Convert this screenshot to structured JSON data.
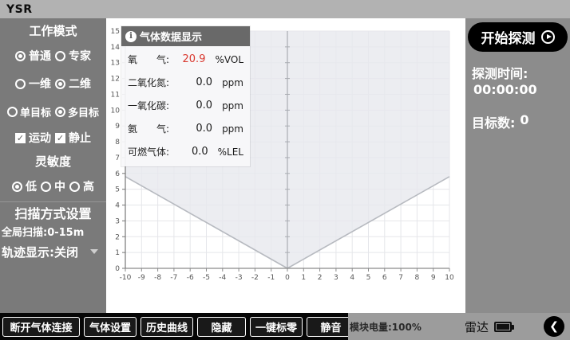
{
  "topbar": {
    "title": "YSR"
  },
  "sidebar": {
    "work_mode_heading": "工作模式",
    "mode_options": [
      {
        "label": "普通",
        "selected": true
      },
      {
        "label": "专家",
        "selected": false
      }
    ],
    "dimension_options": [
      {
        "label": "一维",
        "selected": false
      },
      {
        "label": "二维",
        "selected": true
      }
    ],
    "target_options": [
      {
        "label": "单目标",
        "selected": false
      },
      {
        "label": "多目标",
        "selected": true
      }
    ],
    "motion_checkboxes": [
      {
        "label": "运动",
        "checked": true,
        "check_glyph": "✓"
      },
      {
        "label": "静止",
        "checked": true,
        "check_glyph": "✓"
      }
    ],
    "sensitivity_heading": "灵敏度",
    "sensitivity_options": [
      {
        "label": "低",
        "selected": true
      },
      {
        "label": "中",
        "selected": false
      },
      {
        "label": "高",
        "selected": false
      }
    ],
    "scan_heading": "扫描方式设置",
    "global_scan_label": "全局扫描:0-15m",
    "trace_display_label": "轨迹显示:关闭"
  },
  "gas_panel": {
    "title": "气体数据显示",
    "info_icon_glyph": "i",
    "rows": [
      {
        "label": "氧　　气:",
        "value": "20.9",
        "unit": "%VOL"
      },
      {
        "label": "二氧化氮:",
        "value": "0.0",
        "unit": "ppm"
      },
      {
        "label": "一氧化碳:",
        "value": "0.0",
        "unit": "ppm"
      },
      {
        "label": "氨　　气:",
        "value": "0.0",
        "unit": "ppm"
      },
      {
        "label": "可燃气体:",
        "value": "0.0",
        "unit": "%LEL"
      }
    ],
    "oxygen_value_color": "#d9382f"
  },
  "right_panel": {
    "start_button_label": "开始探测",
    "detect_time_label": "探测时间:",
    "detect_time_value": "00:00:00",
    "target_count_label": "目标数:",
    "target_count_value": "0"
  },
  "bottombar": {
    "buttons": [
      "断开气体连接",
      "气体设置",
      "历史曲线",
      "隐藏",
      "一键标零",
      "静音"
    ],
    "battery_label": "模块电量:100%",
    "radar_label": "雷达",
    "back_glyph": "❮"
  },
  "colors": {
    "topbar_bg": "#b2b2b2",
    "sidebar_bg": "#7a7a7a",
    "right_panel_bg": "#8c8c8c",
    "bottombar_left_bg": "#060606",
    "bottombar_right_bg": "#9c9c9c",
    "panel_header_bg": "#696969",
    "oxygen_red": "#d9382f",
    "scan_fill": "#e7e9ee",
    "scan_border": "#b7bac0"
  },
  "chart_data": {
    "type": "area",
    "title": "",
    "xlabel": "",
    "ylabel": "",
    "xlim": [
      -10,
      10
    ],
    "ylim": [
      0,
      15
    ],
    "x_tick_step": 1,
    "y_tick_step": 1,
    "grid": true,
    "series": [
      {
        "name": "scan-sector-left-boundary",
        "points": [
          [
            0,
            0
          ],
          [
            -10,
            5.8
          ]
        ]
      },
      {
        "name": "scan-sector-right-boundary",
        "points": [
          [
            0,
            0
          ],
          [
            10,
            5.8
          ]
        ]
      }
    ],
    "shaded_region": {
      "name": "radar-scan-sector",
      "polygon": [
        [
          0,
          0
        ],
        [
          10,
          5.8
        ],
        [
          10,
          15
        ],
        [
          -10,
          15
        ],
        [
          -10,
          5.8
        ]
      ],
      "fill": "#e7e9ee"
    },
    "center_axis_x": 0,
    "legend": null
  }
}
